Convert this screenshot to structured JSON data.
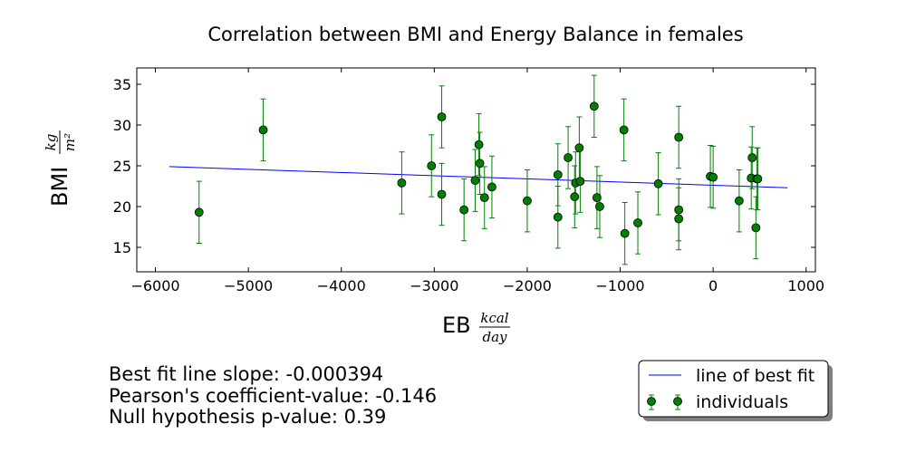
{
  "chart_data": {
    "type": "scatter",
    "title": "Correlation between BMI and Energy Balance in females",
    "xlabel": {
      "prefix": "EB",
      "numerator": "kcal",
      "denominator": "day"
    },
    "ylabel": {
      "prefix": "BMI",
      "numerator": "kg",
      "denominator": "m²"
    },
    "xlim": [
      -6200,
      1100
    ],
    "ylim": [
      12,
      37
    ],
    "xticks": [
      -6000,
      -5000,
      -4000,
      -3000,
      -2000,
      -1000,
      0,
      1000
    ],
    "xtick_labels": [
      "−6000",
      "−5000",
      "−4000",
      "−3000",
      "−2000",
      "−1000",
      "0",
      "1000"
    ],
    "yticks": [
      15,
      20,
      25,
      30,
      35
    ],
    "ytick_labels": [
      "15",
      "20",
      "25",
      "30",
      "35"
    ],
    "colors": {
      "points": "#007f00",
      "errorbars": "#008000",
      "fit": "#0000ff",
      "point_edge": "#000000"
    },
    "error_half_width": 3.8,
    "fit_line": {
      "name": "line of best fit",
      "x": [
        -5850,
        800
      ],
      "y": [
        24.9,
        22.3
      ]
    },
    "series": [
      {
        "name": "individuals",
        "x": [
          -5530,
          -4840,
          -3350,
          -3030,
          -2920,
          -2920,
          -2680,
          -2560,
          -2520,
          -2510,
          -2460,
          -2380,
          -2000,
          -1670,
          -1670,
          -1560,
          -1490,
          -1480,
          -1440,
          -1430,
          -1280,
          -1250,
          -1220,
          -960,
          -950,
          -810,
          -590,
          -370,
          -370,
          -370,
          -30,
          0,
          280,
          410,
          420,
          460,
          470,
          480
        ],
        "y": [
          19.3,
          29.4,
          22.9,
          25.0,
          31.0,
          21.5,
          19.6,
          23.2,
          27.6,
          25.3,
          21.1,
          22.4,
          20.7,
          18.7,
          23.9,
          26.0,
          21.2,
          22.9,
          27.2,
          23.1,
          32.3,
          21.1,
          20.0,
          29.4,
          16.7,
          18.0,
          22.8,
          28.5,
          19.6,
          18.5,
          23.7,
          23.6,
          20.7,
          23.5,
          26.0,
          17.4,
          23.4,
          23.4
        ]
      }
    ],
    "stats": [
      "Best fit line slope: -0.000394",
      "Pearson's coefficient-value: -0.146",
      "Null hypothesis p-value: 0.39"
    ],
    "legend": {
      "position": "lower-right",
      "entries": [
        "line of best fit",
        "individuals"
      ]
    }
  }
}
